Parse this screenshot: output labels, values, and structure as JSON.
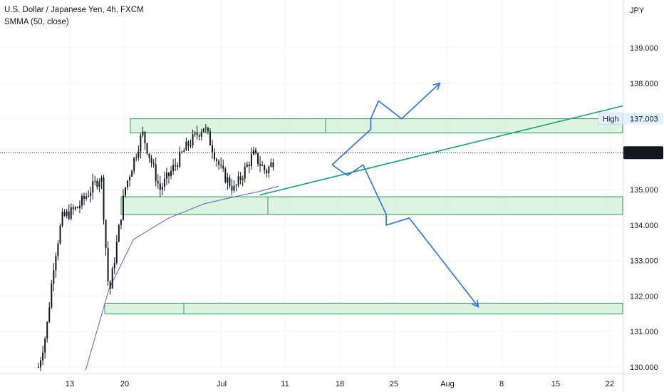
{
  "header": {
    "title": "U.S. Dollar / Japanese Yen, 4h, FXCM",
    "indicator": "SMMA (50, close)"
  },
  "price_axis": {
    "currency": "JPY",
    "ticks": [
      "139.000",
      "138.000",
      "137.000",
      "136.000",
      "135.000",
      "134.000",
      "133.000",
      "132.000",
      "131.000",
      "130.000"
    ]
  },
  "time_axis": {
    "ticks": [
      "13",
      "20",
      "Jul",
      "11",
      "18",
      "25",
      "Aug",
      "8",
      "15",
      "22"
    ]
  },
  "current_price": {
    "label": "136.043",
    "value": 136.043
  },
  "high_marker": {
    "label": "High",
    "price_label": "137.003",
    "value": 137.003
  },
  "colors": {
    "up": "#26a69a",
    "down": "#ef5350",
    "candle": "#131722",
    "zone_fill": "#d7f0d9",
    "zone_stroke": "#2e9e5a",
    "trendline": "#18a07a",
    "smma": "#5b5bd6",
    "arrow": "#2d6fe0",
    "price_tag_bg": "#131722"
  },
  "chart_data": {
    "type": "candlestick",
    "symbol": "USDJPY",
    "timeframe": "4h",
    "ylim": [
      129.85,
      140.05
    ],
    "zones": [
      {
        "name": "resistance",
        "from": 136.6,
        "to": 137.0
      },
      {
        "name": "support",
        "from": 134.3,
        "to": 134.8
      },
      {
        "name": "demand",
        "from": 131.5,
        "to": 131.8
      }
    ],
    "trendline": {
      "from_date": "Jul 7",
      "from": 134.85,
      "to_date": "Aug 22",
      "to": 137.3
    },
    "smma_series": [
      {
        "date": "Jun 15",
        "value": 129.9
      },
      {
        "date": "Jun 18",
        "value": 132.2
      },
      {
        "date": "Jun 21",
        "value": 133.6
      },
      {
        "date": "Jun 25",
        "value": 134.2
      },
      {
        "date": "Jun 29",
        "value": 134.6
      },
      {
        "date": "Jul 3",
        "value": 134.8
      },
      {
        "date": "Jul 7",
        "value": 134.95
      },
      {
        "date": "Jul 10",
        "value": 135.1
      }
    ],
    "projected_paths": [
      {
        "name": "bullish-path",
        "points": [
          [
            "Jul 17",
            135.7
          ],
          [
            "Jul 22",
            136.7
          ],
          [
            "Jul 22",
            137.0
          ],
          [
            "Jul 23",
            137.5
          ],
          [
            "Jul 26",
            137.0
          ],
          [
            "Jul 31",
            138.0
          ]
        ]
      },
      {
        "name": "bearish-path",
        "points": [
          [
            "Jul 17",
            135.7
          ],
          [
            "Jul 19",
            135.4
          ],
          [
            "Jul 21",
            135.7
          ],
          [
            "Jul 24",
            134.3
          ],
          [
            "Jul 24",
            134.0
          ],
          [
            "Jul 27",
            134.2
          ],
          [
            "Aug 5",
            131.7
          ]
        ]
      }
    ],
    "approx_price_path": [
      {
        "date": "Jun 9",
        "value": 130.0
      },
      {
        "date": "Jun 10",
        "value": 131.0
      },
      {
        "date": "Jun 11",
        "value": 133.0
      },
      {
        "date": "Jun 12",
        "value": 134.2
      },
      {
        "date": "Jun 14",
        "value": 134.5
      },
      {
        "date": "Jun 15",
        "value": 134.8
      },
      {
        "date": "Jun 17",
        "value": 135.4
      },
      {
        "date": "Jun 18",
        "value": 132.0
      },
      {
        "date": "Jun 20",
        "value": 135.0
      },
      {
        "date": "Jun 22",
        "value": 136.6
      },
      {
        "date": "Jun 24",
        "value": 135.0
      },
      {
        "date": "Jun 27",
        "value": 136.2
      },
      {
        "date": "Jun 29",
        "value": 136.8
      },
      {
        "date": "Jul 1",
        "value": 135.5
      },
      {
        "date": "Jul 3",
        "value": 135.0
      },
      {
        "date": "Jul 6",
        "value": 136.0
      },
      {
        "date": "Jul 8",
        "value": 135.5
      },
      {
        "date": "Jul 10",
        "value": 136.043
      }
    ]
  }
}
